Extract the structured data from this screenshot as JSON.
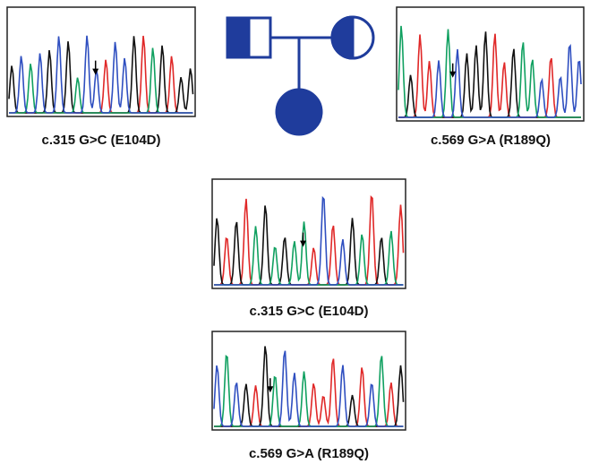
{
  "panels": [
    {
      "caption": "c.315 G>C (E104D)"
    },
    {
      "caption": "c.569 G>A (R189Q)"
    },
    {
      "caption": "c.315 G>C (E104D)"
    },
    {
      "caption": "c.569 G>A (R189Q)"
    }
  ]
}
